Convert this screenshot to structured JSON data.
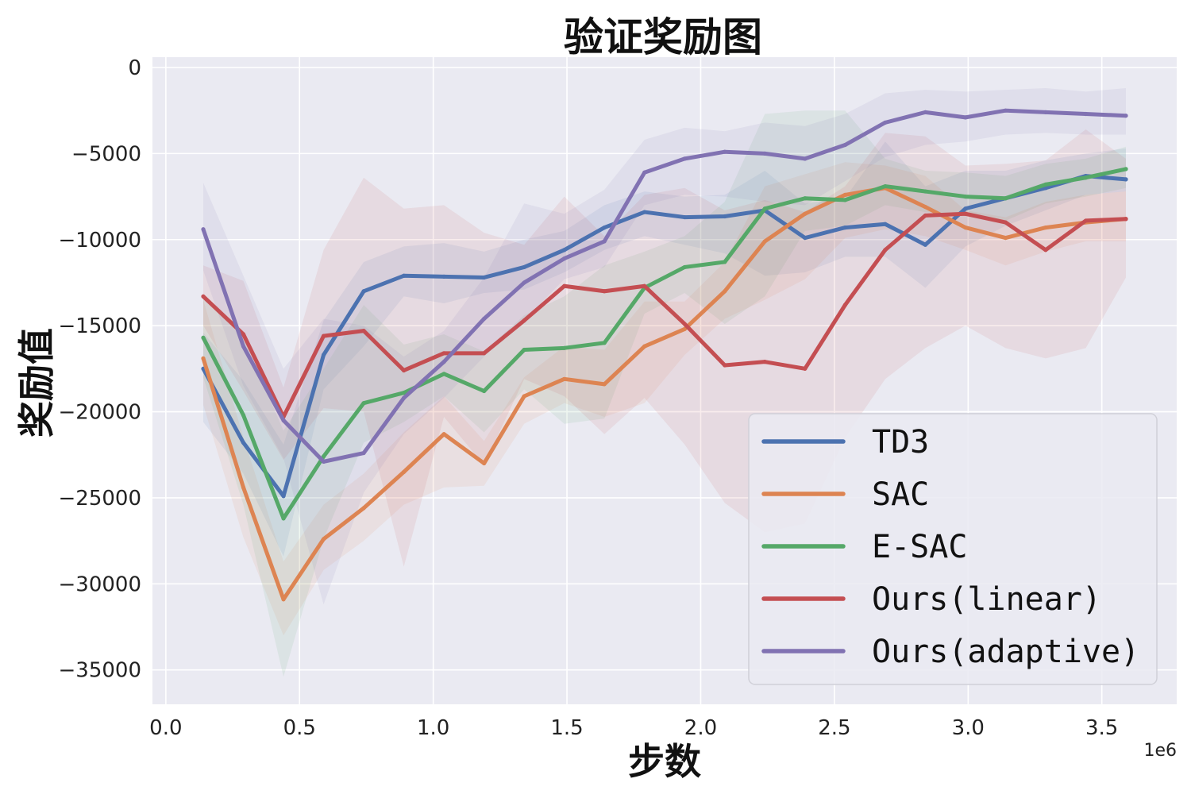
{
  "chart_data": {
    "type": "line",
    "title": "验证奖励图",
    "xlabel": "步数",
    "ylabel": "奖励值",
    "x_offset_label": "1e6",
    "xlim": [
      -0.05,
      3.78
    ],
    "ylim": [
      -37000,
      600
    ],
    "x_ticks": [
      0.0,
      0.5,
      1.0,
      1.5,
      2.0,
      2.5,
      3.0,
      3.5
    ],
    "x_tick_labels": [
      "0.0",
      "0.5",
      "1.0",
      "1.5",
      "2.0",
      "2.5",
      "3.0",
      "3.5"
    ],
    "y_ticks": [
      0,
      -5000,
      -10000,
      -15000,
      -20000,
      -25000,
      -30000,
      -35000
    ],
    "y_tick_labels": [
      "0",
      "−5000",
      "−10000",
      "−15000",
      "−20000",
      "−25000",
      "−30000",
      "−35000"
    ],
    "grid": true,
    "legend_position": "bottom-right",
    "x": [
      0.14,
      0.29,
      0.44,
      0.59,
      0.74,
      0.89,
      1.04,
      1.19,
      1.34,
      1.49,
      1.64,
      1.79,
      1.94,
      2.09,
      2.24,
      2.39,
      2.54,
      2.69,
      2.84,
      2.99,
      3.14,
      3.29,
      3.44,
      3.59
    ],
    "series": [
      {
        "name": "TD3",
        "color": "#4c72b0",
        "values": [
          -17500,
          -21800,
          -24900,
          -16700,
          -13000,
          -12100,
          -12150,
          -12200,
          -11600,
          -10600,
          -9300,
          -8400,
          -8700,
          -8650,
          -8300,
          -9900,
          -9300,
          -9100,
          -10300,
          -8200,
          -7600,
          -7000,
          -6300,
          -6500
        ],
        "lower": [
          -20600,
          -23600,
          -28400,
          -18700,
          -16200,
          -13300,
          -13700,
          -13100,
          -12900,
          -11900,
          -10600,
          -9800,
          -10300,
          -10800,
          -12100,
          -11900,
          -11000,
          -11000,
          -12800,
          -10400,
          -9200,
          -8300,
          -7400,
          -7200
        ],
        "upper": [
          -15400,
          -18200,
          -21900,
          -14700,
          -11300,
          -10400,
          -10200,
          -10700,
          -10000,
          -9500,
          -8000,
          -7200,
          -7500,
          -7400,
          -6000,
          -7900,
          -7600,
          -4300,
          -6900,
          -6000,
          -6000,
          -5400,
          -5000,
          -4700
        ]
      },
      {
        "name": "SAC",
        "color": "#dd8452",
        "values": [
          -16900,
          -24400,
          -30900,
          -27400,
          -25600,
          -23500,
          -21300,
          -23000,
          -19100,
          -18100,
          -18400,
          -16200,
          -15200,
          -13000,
          -10100,
          -8500,
          -7400,
          -7000,
          -8100,
          -9300,
          -9900,
          -9300,
          -9000,
          -8800
        ],
        "lower": [
          -19600,
          -27300,
          -33000,
          -29200,
          -27500,
          -25400,
          -24400,
          -24300,
          -20700,
          -19500,
          -20300,
          -19500,
          -16700,
          -14600,
          -13500,
          -12300,
          -9900,
          -9400,
          -9800,
          -10600,
          -11500,
          -10700,
          -10100,
          -10100
        ],
        "upper": [
          -13500,
          -21500,
          -28700,
          -25400,
          -23600,
          -21200,
          -19100,
          -21700,
          -18000,
          -16200,
          -16400,
          -13600,
          -13600,
          -11300,
          -6900,
          -6200,
          -5500,
          -5700,
          -6300,
          -8300,
          -8700,
          -7800,
          -7400,
          -7200
        ]
      },
      {
        "name": "E-SAC",
        "color": "#55a868",
        "values": [
          -15700,
          -20200,
          -26200,
          -22600,
          -19500,
          -18900,
          -17800,
          -18800,
          -16400,
          -16300,
          -16000,
          -12800,
          -11600,
          -11300,
          -8200,
          -7600,
          -7700,
          -6900,
          -7200,
          -7500,
          -7600,
          -6800,
          -6400,
          -5900
        ],
        "lower": [
          -18000,
          -25400,
          -35400,
          -27400,
          -21800,
          -20600,
          -19100,
          -21200,
          -18700,
          -20700,
          -20400,
          -14300,
          -13100,
          -14900,
          -13300,
          -9500,
          -9200,
          -8000,
          -8400,
          -8500,
          -8900,
          -7900,
          -7500,
          -7000
        ],
        "upper": [
          -13300,
          -15700,
          -21100,
          -17500,
          -13800,
          -16100,
          -15500,
          -16500,
          -14400,
          -13300,
          -11500,
          -10700,
          -9800,
          -7800,
          -2700,
          -2500,
          -2500,
          -5300,
          -6000,
          -6100,
          -6300,
          -5600,
          -5300,
          -4600
        ]
      },
      {
        "name": "Ours(linear)",
        "color": "#c44e52",
        "values": [
          -13300,
          -15500,
          -20300,
          -15600,
          -15300,
          -17600,
          -16600,
          -16600,
          -14700,
          -12700,
          -13000,
          -12700,
          -14900,
          -17300,
          -17100,
          -17500,
          -13800,
          -10600,
          -8600,
          -8500,
          -9000,
          -10600,
          -8900,
          -8800
        ],
        "lower": [
          -15000,
          -18800,
          -22800,
          -19800,
          -20000,
          -29000,
          -20300,
          -23100,
          -18100,
          -19100,
          -21300,
          -19200,
          -21900,
          -25300,
          -27000,
          -26500,
          -21500,
          -18100,
          -16300,
          -15000,
          -16300,
          -16900,
          -16300,
          -12200
        ],
        "upper": [
          -11500,
          -12400,
          -18600,
          -10600,
          -6400,
          -8200,
          -8000,
          -9600,
          -10300,
          -7500,
          -9800,
          -7400,
          -7000,
          -8300,
          -7700,
          -8400,
          -6900,
          -3800,
          -4000,
          -5700,
          -5600,
          -5400,
          -3600,
          -5300
        ]
      },
      {
        "name": "Ours(adaptive)",
        "color": "#8172b2",
        "values": [
          -9400,
          -16200,
          -20500,
          -22900,
          -22400,
          -19200,
          -17100,
          -14600,
          -12500,
          -11100,
          -10100,
          -6100,
          -5300,
          -4900,
          -5000,
          -5300,
          -4500,
          -3200,
          -2600,
          -2900,
          -2500,
          -2600,
          -2700,
          -2800
        ],
        "lower": [
          -11800,
          -18500,
          -22700,
          -31200,
          -24700,
          -21300,
          -19200,
          -16800,
          -14700,
          -12300,
          -11600,
          -8000,
          -7400,
          -7500,
          -7800,
          -8000,
          -6600,
          -5200,
          -4500,
          -4300,
          -3900,
          -3800,
          -3900,
          -3900
        ],
        "upper": [
          -6700,
          -12100,
          -17500,
          -14600,
          -15000,
          -16800,
          -15300,
          -12200,
          -7900,
          -8500,
          -7100,
          -4200,
          -3500,
          -3700,
          -3200,
          -3400,
          -2700,
          -1500,
          -1300,
          -1400,
          -1300,
          -1200,
          -1400,
          -1200
        ]
      }
    ]
  }
}
